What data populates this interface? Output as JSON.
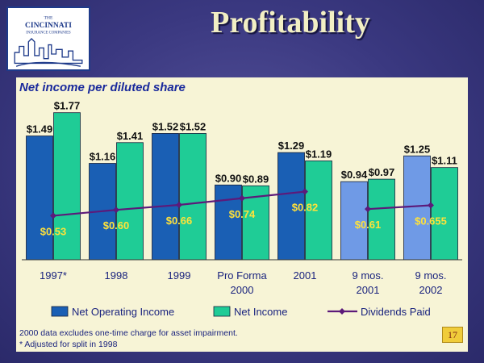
{
  "slide": {
    "title": "Profitability",
    "page_number": "17",
    "logo_lines": [
      "THE",
      "CINCINNATI",
      "INSURANCE COMPANIES"
    ]
  },
  "chart_data": {
    "type": "bar",
    "title": "Net income per diluted share",
    "categories": [
      [
        "1997*"
      ],
      [
        "1998"
      ],
      [
        "1999"
      ],
      [
        "Pro Forma",
        "2000"
      ],
      [
        "2001"
      ],
      [
        "9 mos.",
        "2001"
      ],
      [
        "9 mos.",
        "2002"
      ]
    ],
    "series": [
      {
        "name": "Net Operating Income",
        "type": "bar",
        "values": [
          1.49,
          1.16,
          1.52,
          0.9,
          1.29,
          0.94,
          1.25
        ],
        "labels": [
          "$1.49",
          "$1.16",
          "$1.52",
          "$0.90",
          "$1.29",
          "$0.94",
          "$1.25"
        ]
      },
      {
        "name": "Net Income",
        "type": "bar",
        "values": [
          1.77,
          1.41,
          1.52,
          0.89,
          1.19,
          0.97,
          1.11
        ],
        "labels": [
          "$1.77",
          "$1.41",
          "$1.52",
          "$0.89",
          "$1.19",
          "$0.97",
          "$1.11"
        ]
      },
      {
        "name": "Dividends Paid",
        "type": "line",
        "values": [
          0.53,
          0.6,
          0.66,
          0.74,
          0.82,
          0.61,
          0.655
        ],
        "labels": [
          "$0.53",
          "$0.60",
          "$0.66",
          "$0.74",
          "$0.82",
          "$0.61",
          "$0.655"
        ],
        "segments": [
          [
            0,
            4
          ],
          [
            5,
            6
          ]
        ]
      }
    ],
    "highlight_categories": [
      5,
      6
    ],
    "ylim": [
      0,
      2.0
    ],
    "grid": false,
    "legend_position": "bottom",
    "colors": {
      "net_operating_income": "#1a5fb4",
      "net_operating_income_light": "#6f9ae6",
      "net_income": "#1fcc96",
      "dividends": "#5c1a7a",
      "dividend_label": "#ffe23a",
      "title": "#1a2a9c"
    },
    "footnotes": [
      "2000 data excludes one-time charge for asset impairment.",
      "* Adjusted for split in 1998"
    ]
  }
}
